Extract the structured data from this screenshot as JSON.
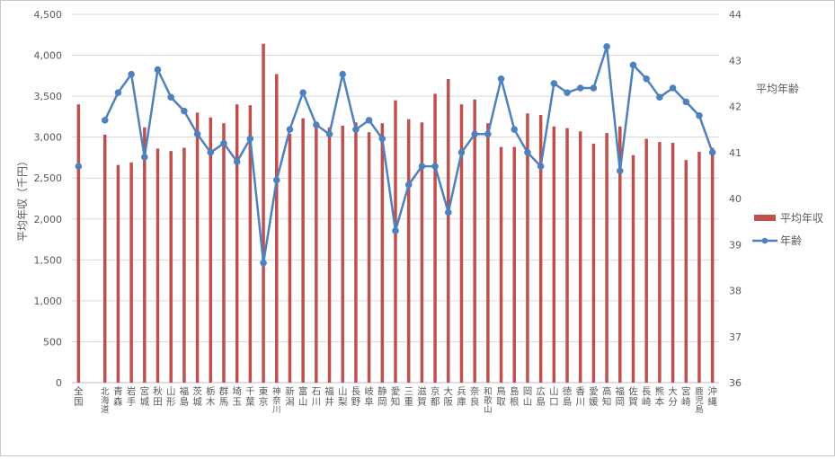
{
  "chart_data": {
    "type": "bar+line",
    "categories": [
      "全国",
      "",
      "北海道",
      "青森",
      "岩手",
      "宮城",
      "秋田",
      "山形",
      "福島",
      "茨城",
      "栃木",
      "群馬",
      "埼玉",
      "千葉",
      "東京",
      "神奈川",
      "新潟",
      "富山",
      "石川",
      "福井",
      "山梨",
      "長野",
      "岐阜",
      "静岡",
      "愛知",
      "三重",
      "滋賀",
      "京都",
      "大阪",
      "兵庫",
      "奈良",
      "和歌山",
      "鳥取",
      "島根",
      "岡山",
      "広島",
      "山口",
      "徳島",
      "香川",
      "愛媛",
      "高知",
      "福岡",
      "佐賀",
      "長崎",
      "熊本",
      "大分",
      "宮崎",
      "鹿児島",
      "沖縄"
    ],
    "series": [
      {
        "name": "平均年収",
        "chart": "bar",
        "axis": "left",
        "color": "#c0504d",
        "values": [
          3400,
          null,
          3030,
          2660,
          2690,
          3120,
          2860,
          2830,
          2870,
          3300,
          3240,
          3170,
          3400,
          3390,
          4140,
          3770,
          3040,
          3230,
          3130,
          3120,
          3140,
          3180,
          3060,
          3170,
          3450,
          3220,
          3180,
          3530,
          3710,
          3400,
          3460,
          3170,
          2880,
          2880,
          3290,
          3270,
          3130,
          3110,
          3070,
          2920,
          3050,
          3130,
          2780,
          2980,
          2940,
          2930,
          2720,
          2820,
          2870
        ]
      },
      {
        "name": "年齢",
        "chart": "line",
        "axis": "right",
        "color": "#4f81bd",
        "values": [
          40.7,
          null,
          41.7,
          42.3,
          42.7,
          40.9,
          42.8,
          42.2,
          41.9,
          41.4,
          41.0,
          41.2,
          40.8,
          41.3,
          38.6,
          40.4,
          41.5,
          42.3,
          41.6,
          41.4,
          42.7,
          41.5,
          41.7,
          41.3,
          39.3,
          40.3,
          40.7,
          40.7,
          39.7,
          41.0,
          41.4,
          41.4,
          42.6,
          41.5,
          41.0,
          40.7,
          42.5,
          42.3,
          42.4,
          42.4,
          43.3,
          40.6,
          42.9,
          42.6,
          42.2,
          42.4,
          42.1,
          41.8,
          41.0
        ]
      }
    ],
    "y_left": {
      "label": "平均年収（千円）",
      "min": 0,
      "max": 4500,
      "step": 500,
      "tick_labels": [
        "0",
        "500",
        "1,000",
        "1,500",
        "2,000",
        "2,500",
        "3,000",
        "3,500",
        "4,000",
        "4,500"
      ]
    },
    "y_right": {
      "label": "平均年齢",
      "min": 36,
      "max": 44,
      "step": 1,
      "tick_labels": [
        "36",
        "37",
        "38",
        "39",
        "40",
        "41",
        "42",
        "43",
        "44"
      ]
    },
    "grid": true,
    "legend": {
      "position": "right",
      "entries": [
        {
          "label": "平均年収",
          "marker": "bar",
          "color": "#c0504d"
        },
        {
          "label": "年齢",
          "marker": "line",
          "color": "#4f81bd"
        }
      ]
    }
  }
}
